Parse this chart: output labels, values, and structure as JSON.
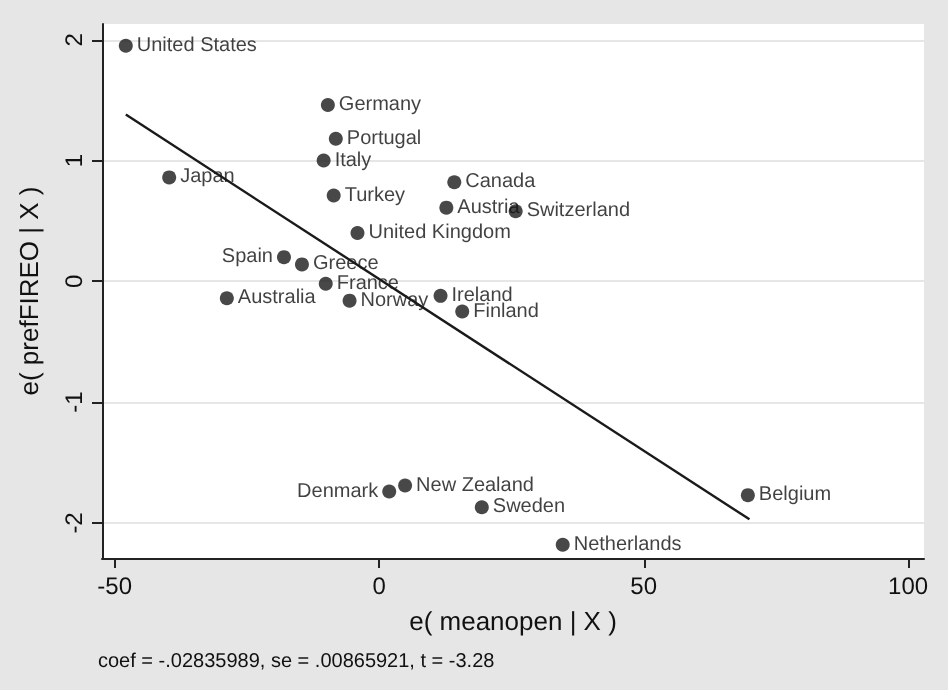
{
  "chart_data": {
    "type": "scatter",
    "xlabel": "e( meanopen | X )",
    "ylabel": "e( prefFIREO | X )",
    "annotations": [
      "coef = -.02835989, se = .00865921, t = -3.28"
    ],
    "xlim": [
      -52.4,
      103
    ],
    "xticks": [
      -50,
      0,
      50,
      100
    ],
    "ylim": [
      -2.29,
      2.13
    ],
    "yticks": [
      -2,
      -1,
      0,
      1,
      2
    ],
    "grid": "y",
    "marker": "circle",
    "series": [
      {
        "color": "#1a1a1a",
        "x": [
          -47.9,
          -9.7,
          -8.2,
          -10.5,
          -39.7,
          -8.6,
          14.2,
          12.7,
          25.8,
          -4.1,
          -18,
          -14.6,
          -10.1,
          -28.8,
          -5.6,
          11.6,
          15.7,
          1.9,
          4.9,
          19.4,
          34.7,
          69.7
        ],
        "values": [
          1.95,
          1.46,
          1.18,
          1.0,
          0.86,
          0.71,
          0.82,
          0.61,
          0.58,
          0.4,
          0.2,
          0.14,
          -0.02,
          -0.14,
          -0.16,
          -0.12,
          -0.25,
          -1.74,
          -1.69,
          -1.87,
          -2.18,
          -1.77
        ],
        "value_labels": [
          "United States",
          "Germany",
          "Portugal",
          "Italy",
          "Japan",
          "Turkey",
          "Canada",
          "Austria",
          "Switzerland",
          "United Kingdom",
          "Spain",
          "Greece",
          "France",
          "Australia",
          "Norway",
          "Ireland",
          "Finland",
          "Denmark",
          "New Zealand",
          "Sweden",
          "Netherlands",
          "Belgium"
        ]
      },
      {
        "type": "line",
        "marker": "none",
        "color": "#1a1a1a",
        "x": [
          -47.9,
          70
        ],
        "values": [
          1.38,
          -1.97
        ]
      }
    ]
  }
}
